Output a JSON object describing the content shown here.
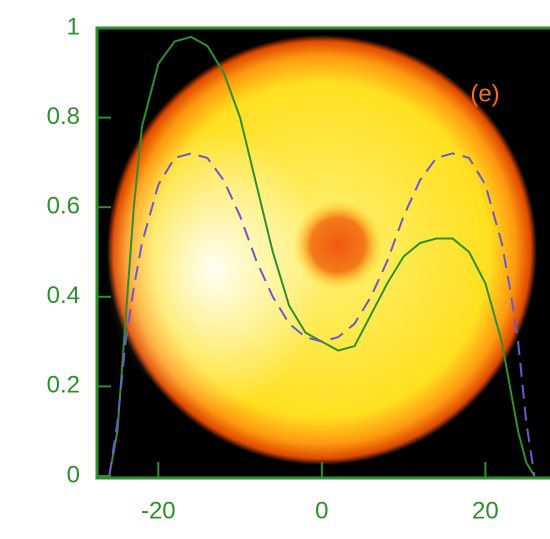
{
  "chart_data": {
    "type": "line",
    "annotation": "(e)",
    "x": [
      -26,
      -25,
      -24,
      -23,
      -22,
      -20,
      -18,
      -16,
      -14,
      -12,
      -10,
      -8,
      -6,
      -4,
      -2,
      0,
      2,
      4,
      6,
      8,
      10,
      12,
      14,
      16,
      18,
      20,
      22,
      23,
      24,
      25,
      26
    ],
    "series": [
      {
        "color": "#2f8f2f",
        "style": "solid",
        "values": [
          0,
          0.1,
          0.35,
          0.6,
          0.78,
          0.92,
          0.97,
          0.98,
          0.96,
          0.9,
          0.8,
          0.65,
          0.5,
          0.38,
          0.32,
          0.3,
          0.28,
          0.29,
          0.36,
          0.43,
          0.49,
          0.52,
          0.53,
          0.53,
          0.5,
          0.43,
          0.3,
          0.2,
          0.1,
          0.03,
          0
        ]
      },
      {
        "color": "#6a5acd",
        "style": "dashed",
        "values": [
          0,
          0.12,
          0.3,
          0.42,
          0.52,
          0.65,
          0.71,
          0.72,
          0.71,
          0.66,
          0.58,
          0.48,
          0.4,
          0.34,
          0.31,
          0.3,
          0.31,
          0.34,
          0.4,
          0.48,
          0.58,
          0.66,
          0.71,
          0.72,
          0.71,
          0.65,
          0.52,
          0.42,
          0.3,
          0.12,
          0
        ]
      }
    ],
    "xlim": [
      -27.5,
      27.9
    ],
    "ylim": [
      0,
      1
    ],
    "xticks": [
      -20,
      0,
      20
    ],
    "yticks": [
      0,
      0.2,
      0.4,
      0.6,
      0.8,
      1
    ],
    "axis_color": "#2f8f2f"
  }
}
